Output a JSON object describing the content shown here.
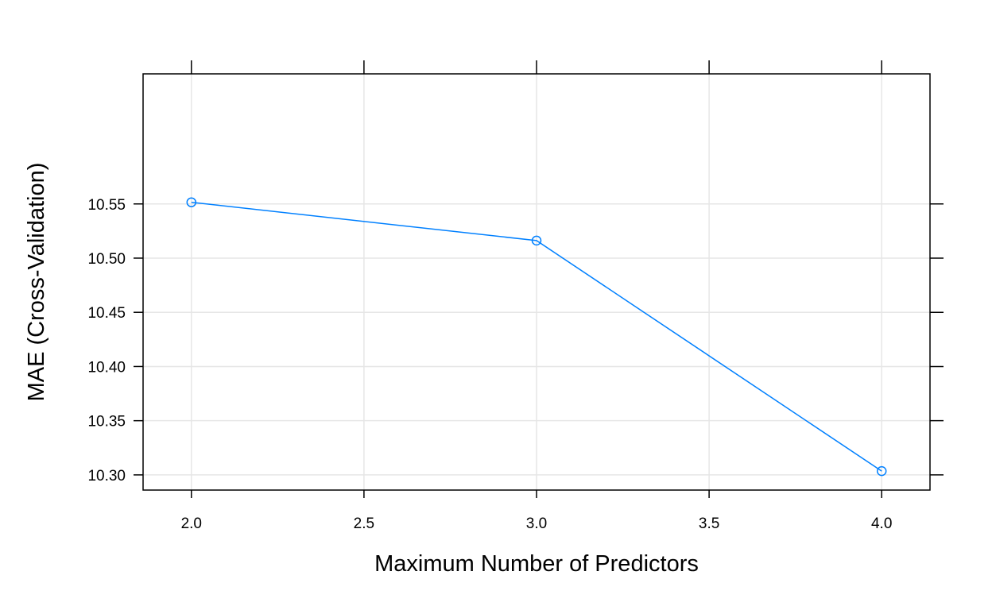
{
  "chart_data": {
    "type": "line",
    "title": "",
    "xlabel": "Maximum Number of Predictors",
    "ylabel": "MAE (Cross-Validation)",
    "xlim": [
      1.86,
      4.14
    ],
    "ylim": [
      10.286,
      10.67
    ],
    "x_ticks": [
      "2.0",
      "2.5",
      "3.0",
      "3.5",
      "4.0"
    ],
    "x_tick_values": [
      2.0,
      2.5,
      3.0,
      3.5,
      4.0
    ],
    "y_ticks": [
      "10.30",
      "10.35",
      "10.40",
      "10.45",
      "10.50",
      "10.55"
    ],
    "y_tick_values": [
      10.3,
      10.35,
      10.4,
      10.45,
      10.5,
      10.55
    ],
    "grid": true,
    "legend": "none",
    "series": [
      {
        "x": [
          2,
          3,
          4
        ],
        "y": [
          10.5515,
          10.5162,
          10.3035
        ],
        "color": "#0080ff",
        "marker": "open-circle"
      }
    ]
  }
}
